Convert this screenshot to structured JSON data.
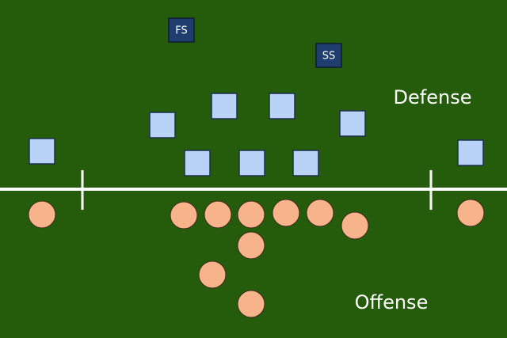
{
  "safeties": [
    "FS",
    "SS"
  ],
  "labels": {
    "defense": "Defense",
    "offense": "Offense"
  }
}
